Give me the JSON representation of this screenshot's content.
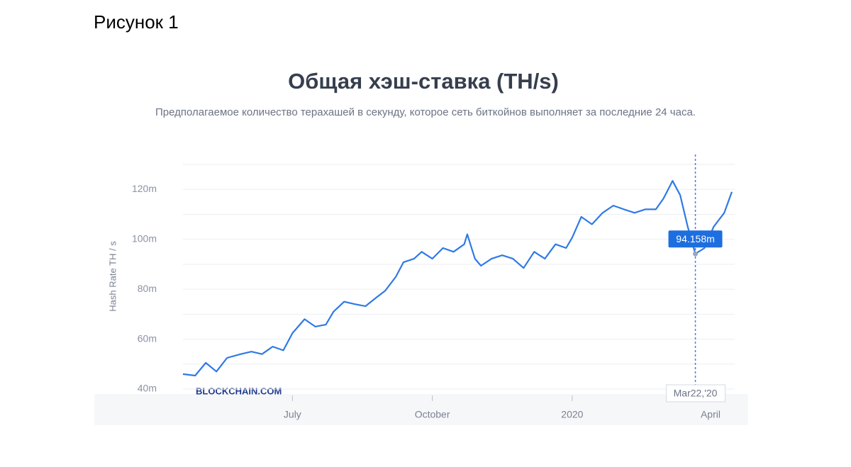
{
  "figure_caption": "Рисунок 1",
  "chart_data": {
    "type": "line",
    "title": "Общая хэш-ставка (TH/s)",
    "subtitle": "Предполагаемое количество терахашей в секунду, которое сеть биткойнов выполняет за последние 24 часа.",
    "ylabel": "Hash Rate TH / s",
    "watermark": "BLOCKCHAIN.COM",
    "color": "#2f7ae5",
    "x": [
      "2019-04-20",
      "2019-04-28",
      "2019-05-05",
      "2019-05-12",
      "2019-05-19",
      "2019-05-28",
      "2019-06-04",
      "2019-06-11",
      "2019-06-18",
      "2019-06-25",
      "2019-07-01",
      "2019-07-09",
      "2019-07-16",
      "2019-07-23",
      "2019-07-28",
      "2019-08-04",
      "2019-08-11",
      "2019-08-18",
      "2019-08-25",
      "2019-08-31",
      "2019-09-07",
      "2019-09-12",
      "2019-09-19",
      "2019-09-24",
      "2019-10-01",
      "2019-10-08",
      "2019-10-15",
      "2019-10-22",
      "2019-10-24",
      "2019-10-29",
      "2019-11-02",
      "2019-11-09",
      "2019-11-16",
      "2019-11-23",
      "2019-11-30",
      "2019-12-07",
      "2019-12-14",
      "2019-12-21",
      "2019-12-28",
      "2020-01-01",
      "2020-01-07",
      "2020-01-14",
      "2020-01-21",
      "2020-01-28",
      "2020-02-04",
      "2020-02-11",
      "2020-02-18",
      "2020-02-25",
      "2020-03-01",
      "2020-03-07",
      "2020-03-12",
      "2020-03-17",
      "2020-03-22",
      "2020-03-28",
      "2020-04-03",
      "2020-04-10",
      "2020-04-15"
    ],
    "values": [
      46,
      45.4,
      50.5,
      47,
      52.5,
      54,
      55,
      54,
      57,
      55.5,
      62.4,
      68,
      65,
      65.8,
      71,
      75,
      74,
      73.2,
      76.6,
      79.4,
      85,
      90.8,
      92.2,
      95,
      92.2,
      96.5,
      95,
      98,
      102,
      92.2,
      89.4,
      92.2,
      93.6,
      92.2,
      88.5,
      95,
      92.2,
      98,
      96.5,
      100.7,
      109,
      106,
      110.6,
      113.5,
      112,
      110.6,
      112,
      112,
      116.3,
      123.4,
      117.7,
      105,
      94.158,
      96.5,
      105,
      110.6,
      119
    ],
    "xlim": [
      "2019-04-20",
      "2020-04-15"
    ],
    "xticks": [
      {
        "value": "2019-07-01",
        "label": "July"
      },
      {
        "value": "2019-10-01",
        "label": "October"
      },
      {
        "value": "2020-01-01",
        "label": "2020"
      },
      {
        "value": "2020-04-01",
        "label": "April"
      }
    ],
    "ylim": [
      40,
      130
    ],
    "yticks": [
      {
        "value": 40,
        "label": "40m"
      },
      {
        "value": 60,
        "label": "60m"
      },
      {
        "value": 80,
        "label": "80m"
      },
      {
        "value": 100,
        "label": "100m"
      },
      {
        "value": 120,
        "label": "120m"
      }
    ],
    "minor_yticks": [
      50,
      70,
      90,
      110,
      130
    ],
    "grid": true,
    "tooltip": {
      "index": 52,
      "value_label": "94.158m",
      "x_label": "Mar22,'20"
    }
  }
}
